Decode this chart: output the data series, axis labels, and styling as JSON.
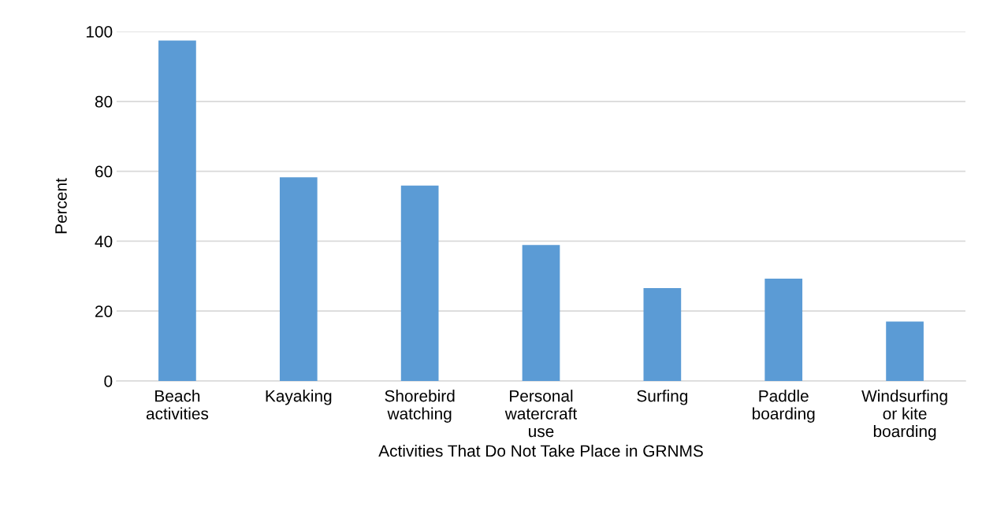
{
  "chart_data": {
    "type": "bar",
    "xlabel": "Activities That Do Not Take Place in GRNMS",
    "ylabel": "Percent",
    "categories": [
      "Beach\nactivities",
      "Kayaking",
      "Shorebird\nwatching",
      "Personal\nwatercraft\nuse",
      "Surfing",
      "Paddle\nboarding",
      "Windsurfing\nor kite\nboarding"
    ],
    "values": [
      97.4,
      58.3,
      55.9,
      38.9,
      26.6,
      29.3,
      17.0
    ],
    "color": "#5b9bd5",
    "ylim": [
      0,
      100
    ],
    "yticks": [
      0,
      20,
      40,
      60,
      80,
      100
    ],
    "grid": "y"
  }
}
